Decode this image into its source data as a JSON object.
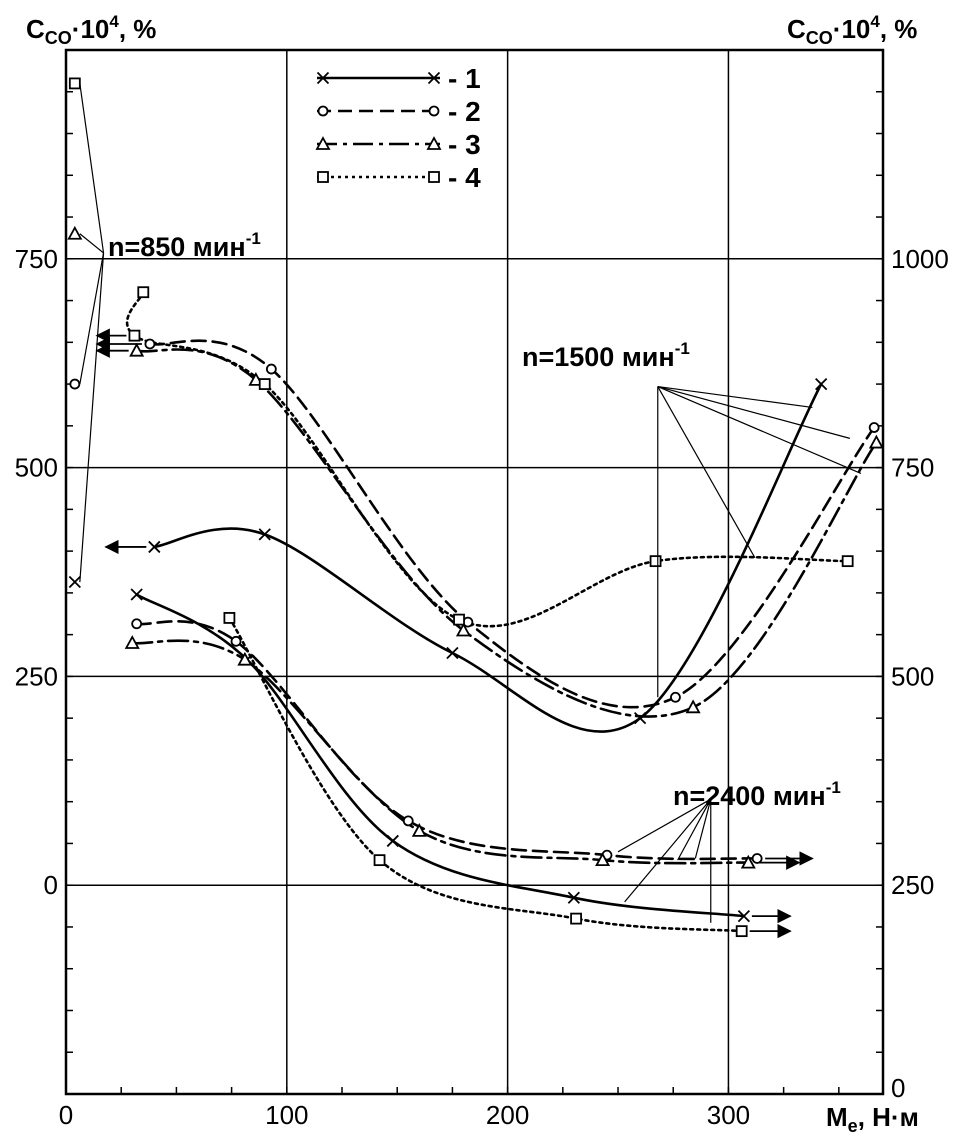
{
  "chart_data": {
    "type": "line",
    "y_left_label": "C",
    "y_left_label_sub": "CO",
    "y_left_label_tail": "·10",
    "y_left_label_sup": "4",
    "y_left_label_unit": ", %",
    "y_right_label": "C",
    "y_right_label_sub": "CO",
    "y_right_label_tail": "·10",
    "y_right_label_sup": "4",
    "y_right_label_unit": ", %",
    "x_label": "M",
    "x_label_sub": "e",
    "x_label_unit": ", Н·м",
    "x_ticks": [
      "0",
      "100",
      "200",
      "300"
    ],
    "x_tick_values": [
      0,
      100,
      200,
      300
    ],
    "y_left_ticks": [
      "0",
      "250",
      "500",
      "750"
    ],
    "y_left_tick_values": [
      0,
      250,
      500,
      750
    ],
    "y_right_ticks": [
      "0",
      "250",
      "500",
      "750",
      "1000"
    ],
    "y_right_tick_values": [
      0,
      250,
      500,
      750,
      1000
    ],
    "xlim": [
      0,
      370
    ],
    "y_left_lim": [
      -250,
      1000
    ],
    "y_right_lim": [
      0,
      1250
    ],
    "grid": true,
    "legend": {
      "placement": "top-center",
      "entries": [
        {
          "id": "1",
          "label": "- 1",
          "marker": "x",
          "dash": "solid"
        },
        {
          "id": "2",
          "label": "- 2",
          "marker": "o",
          "dash": "dashed"
        },
        {
          "id": "3",
          "label": "- 3",
          "marker": "triangle",
          "dash": "dashdot"
        },
        {
          "id": "4",
          "label": "- 4",
          "marker": "square",
          "dash": "dotted"
        }
      ]
    },
    "annotations": [
      {
        "id": "n850",
        "text": "n=850 мин",
        "sup": "-1"
      },
      {
        "id": "n1500",
        "text": "n=1500 мин",
        "sup": "-1"
      },
      {
        "id": "n2400",
        "text": "n=2400 мин",
        "sup": "-1"
      }
    ],
    "series_groups": [
      {
        "n": 850,
        "series": [
          {
            "type": "1",
            "points": [
              [
                4,
                363
              ]
            ]
          },
          {
            "type": "2",
            "points": [
              [
                4,
                600
              ]
            ]
          },
          {
            "type": "3",
            "points": [
              [
                4,
                780
              ]
            ]
          },
          {
            "type": "4",
            "points": [
              [
                4,
                960
              ]
            ]
          }
        ]
      },
      {
        "n": 1500,
        "series": [
          {
            "type": "1",
            "points": [
              [
                40,
                405
              ],
              [
                90,
                420
              ],
              [
                175,
                278
              ],
              [
                260,
                200
              ],
              [
                342,
                600
              ]
            ]
          },
          {
            "type": "2",
            "points": [
              [
                38,
                648
              ],
              [
                93,
                618
              ],
              [
                182,
                315
              ],
              [
                276,
                225
              ],
              [
                366,
                548
              ]
            ]
          },
          {
            "type": "3",
            "points": [
              [
                32,
                640
              ],
              [
                86,
                605
              ],
              [
                180,
                305
              ],
              [
                284,
                213
              ],
              [
                367,
                530
              ]
            ]
          },
          {
            "type": "4",
            "points": [
              [
                35,
                710
              ],
              [
                31,
                658
              ],
              [
                90,
                600
              ],
              [
                178,
                318
              ],
              [
                267,
                388
              ],
              [
                354,
                388
              ]
            ]
          }
        ]
      },
      {
        "n": 2400,
        "series": [
          {
            "type": "1",
            "points": [
              [
                32,
                348
              ],
              [
                82,
                270
              ],
              [
                148,
                53
              ],
              [
                230,
                -15
              ],
              [
                307,
                -37
              ]
            ]
          },
          {
            "type": "2",
            "points": [
              [
                32,
                313
              ],
              [
                77,
                292
              ],
              [
                155,
                77
              ],
              [
                245,
                36
              ],
              [
                313,
                32
              ]
            ]
          },
          {
            "type": "3",
            "points": [
              [
                30,
                290
              ],
              [
                81,
                270
              ],
              [
                160,
                65
              ],
              [
                243,
                30
              ],
              [
                309,
                27
              ]
            ]
          },
          {
            "type": "4",
            "points": [
              [
                74,
                320
              ],
              [
                142,
                30
              ],
              [
                231,
                -40
              ],
              [
                306,
                -55
              ]
            ]
          }
        ]
      }
    ]
  }
}
